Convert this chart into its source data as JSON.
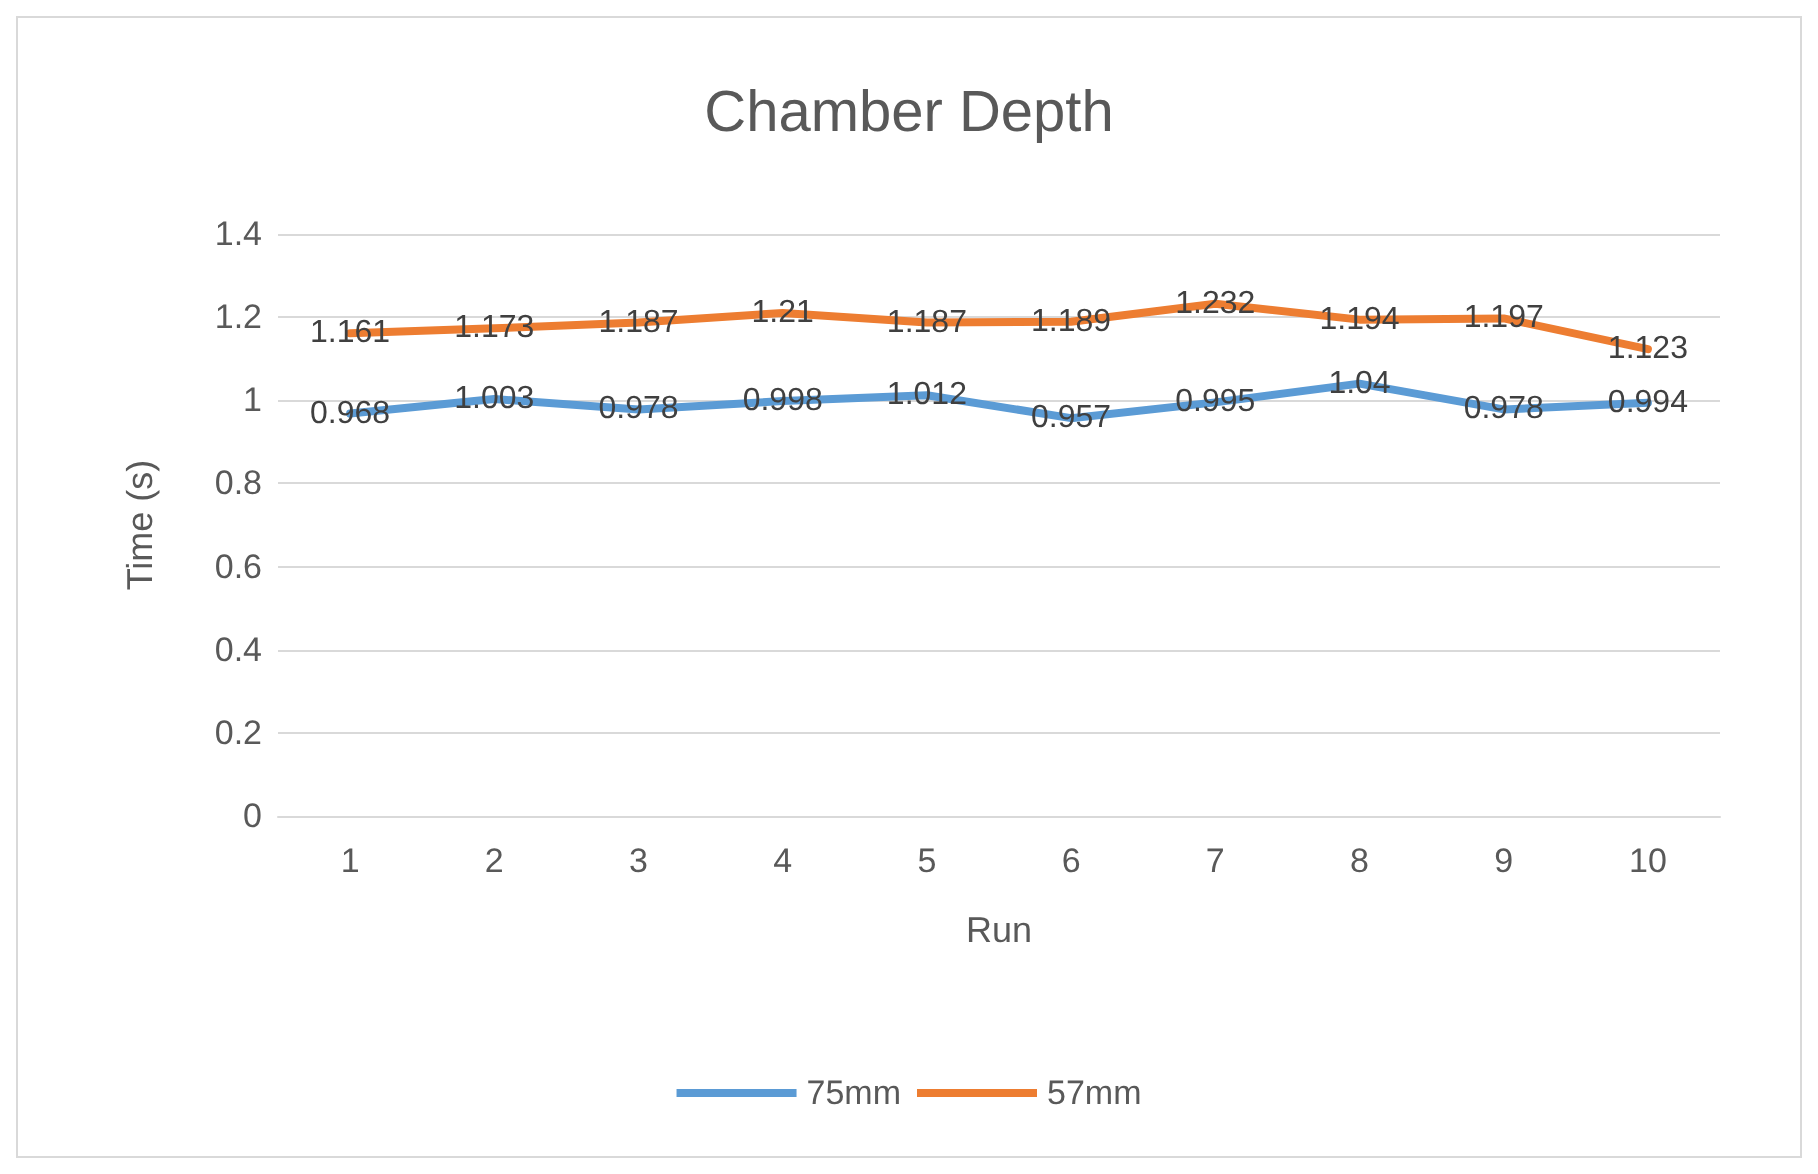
{
  "chart_data": {
    "type": "line",
    "title": "Chamber Depth",
    "xlabel": "Run",
    "ylabel": "Time (s)",
    "categories": [
      "1",
      "2",
      "3",
      "4",
      "5",
      "6",
      "7",
      "8",
      "9",
      "10"
    ],
    "series": [
      {
        "name": "75mm",
        "color": "#5b9bd5",
        "values": [
          0.968,
          1.003,
          0.978,
          0.998,
          1.012,
          0.957,
          0.995,
          1.04,
          0.978,
          0.994
        ]
      },
      {
        "name": "57mm",
        "color": "#ed7d31",
        "values": [
          1.161,
          1.173,
          1.187,
          1.21,
          1.187,
          1.189,
          1.232,
          1.194,
          1.197,
          1.123
        ]
      }
    ],
    "ylim": [
      0,
      1.4
    ],
    "yticks": [
      0,
      0.2,
      0.4,
      0.6,
      0.8,
      1,
      1.2,
      1.4
    ],
    "grid": "y",
    "legend": "bottom",
    "marker": "none",
    "line_style": "solid",
    "data_labels": true
  }
}
